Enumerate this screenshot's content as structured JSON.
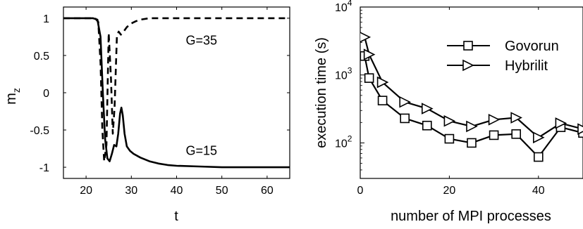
{
  "chart_data": [
    {
      "type": "line",
      "xlabel": "t",
      "ylabel": "m",
      "ylabel_sub": "z",
      "xlim": [
        15,
        65
      ],
      "ylim": [
        -1.15,
        1.15
      ],
      "x_ticks": [
        20,
        30,
        40,
        50,
        60
      ],
      "y_ticks": [
        1,
        0.5,
        0,
        -0.5,
        -1
      ],
      "x_tick_labels": [
        "20",
        "30",
        "40",
        "50",
        "60"
      ],
      "y_tick_labels": [
        "1",
        "0.5",
        "0",
        "-0.5",
        "-1"
      ],
      "annotations": [
        {
          "text": "G=35",
          "x": 45.5,
          "y": 0.7
        },
        {
          "text": "G=15",
          "x": 45.5,
          "y": -0.78
        }
      ],
      "series": [
        {
          "style": "solid",
          "x": [
            15,
            21.5,
            22.5,
            23.2,
            23.7,
            24.2,
            24.7,
            25.2,
            25.7,
            26.2,
            26.7,
            27.1,
            27.5,
            27.8,
            28.1,
            28.5,
            29.0,
            29.7,
            30.5,
            32,
            34,
            36,
            38,
            40,
            45,
            50,
            55,
            60,
            65
          ],
          "y": [
            1,
            1,
            0.98,
            0.75,
            0.0,
            -0.62,
            -0.88,
            -0.92,
            -0.82,
            -0.7,
            -0.72,
            -0.55,
            -0.28,
            -0.2,
            -0.3,
            -0.55,
            -0.72,
            -0.78,
            -0.82,
            -0.87,
            -0.92,
            -0.95,
            -0.97,
            -0.98,
            -0.99,
            -1,
            -1,
            -1,
            -1
          ]
        },
        {
          "style": "dashed",
          "x": [
            15,
            22,
            22.7,
            23.2,
            23.6,
            24.0,
            24.5,
            25.0,
            25.5,
            25.9,
            26.3,
            26.8,
            27.2,
            27.7,
            28.3,
            29.0,
            30,
            31,
            32,
            34,
            36,
            40,
            50,
            60,
            65
          ],
          "y": [
            1,
            1,
            0.95,
            0.4,
            -0.5,
            -0.92,
            -0.7,
            0.8,
            0.2,
            -0.55,
            -0.2,
            0.75,
            0.82,
            0.78,
            0.82,
            0.88,
            0.93,
            0.96,
            0.98,
            1,
            1,
            1,
            1,
            1,
            1
          ]
        }
      ]
    },
    {
      "type": "line",
      "xlabel": "number of MPI processes",
      "ylabel": "execution time (s)",
      "xlim": [
        0,
        50
      ],
      "ylog": true,
      "ylim": [
        30,
        10000
      ],
      "x_ticks": [
        0,
        20,
        40
      ],
      "x_tick_labels": [
        "0",
        "20",
        "40"
      ],
      "y_ticks": [
        100,
        1000,
        10000
      ],
      "y_tick_labels": [
        {
          "base": "10",
          "exp": "2"
        },
        {
          "base": "10",
          "exp": "3"
        },
        {
          "base": "10",
          "exp": "4"
        }
      ],
      "legend_position": "top-right",
      "series": [
        {
          "name": "Govorun",
          "marker": "square",
          "x": [
            1,
            2,
            5,
            10,
            15,
            20,
            25,
            30,
            35,
            40,
            45,
            50
          ],
          "y": [
            1900,
            900,
            420,
            230,
            180,
            115,
            100,
            130,
            135,
            62,
            170,
            140
          ]
        },
        {
          "name": "Hybrilit",
          "marker": "triangle-right",
          "x": [
            1,
            2,
            5,
            10,
            15,
            20,
            25,
            30,
            35,
            40,
            45,
            50
          ],
          "y": [
            3600,
            2000,
            780,
            400,
            320,
            210,
            175,
            220,
            235,
            120,
            195,
            160
          ]
        }
      ]
    }
  ]
}
